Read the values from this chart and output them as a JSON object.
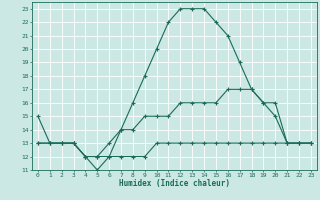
{
  "xlabel": "Humidex (Indice chaleur)",
  "bg_color": "#cce8e4",
  "line_color": "#1a6b5a",
  "grid_color": "#ffffff",
  "xlim": [
    -0.5,
    23.5
  ],
  "ylim": [
    11,
    23.5
  ],
  "yticks": [
    11,
    12,
    13,
    14,
    15,
    16,
    17,
    18,
    19,
    20,
    21,
    22,
    23
  ],
  "xticks": [
    0,
    1,
    2,
    3,
    4,
    5,
    6,
    7,
    8,
    9,
    10,
    11,
    12,
    13,
    14,
    15,
    16,
    17,
    18,
    19,
    20,
    21,
    22,
    23
  ],
  "line1_x": [
    0,
    1,
    2,
    3,
    4,
    5,
    6,
    7,
    8,
    9,
    10,
    11,
    12,
    13,
    14,
    15,
    16,
    17,
    18,
    19,
    20,
    21,
    22,
    23
  ],
  "line1_y": [
    15,
    13,
    13,
    13,
    12,
    11,
    12,
    14,
    16,
    18,
    20,
    22,
    23,
    23,
    23,
    22,
    21,
    19,
    17,
    16,
    15,
    13,
    13,
    13
  ],
  "line2_x": [
    0,
    1,
    2,
    3,
    4,
    5,
    6,
    7,
    8,
    9,
    10,
    11,
    12,
    13,
    14,
    15,
    16,
    17,
    18,
    19,
    20,
    21,
    22,
    23
  ],
  "line2_y": [
    13,
    13,
    13,
    13,
    12,
    12,
    13,
    14,
    14,
    15,
    15,
    15,
    16,
    16,
    16,
    16,
    17,
    17,
    17,
    16,
    16,
    13,
    13,
    13
  ],
  "line3_x": [
    0,
    1,
    2,
    3,
    4,
    5,
    6,
    7,
    8,
    9,
    10,
    11,
    12,
    13,
    14,
    15,
    16,
    17,
    18,
    19,
    20,
    21,
    22,
    23
  ],
  "line3_y": [
    13,
    13,
    13,
    13,
    12,
    12,
    12,
    12,
    12,
    12,
    13,
    13,
    13,
    13,
    13,
    13,
    13,
    13,
    13,
    13,
    13,
    13,
    13,
    13
  ],
  "xlabel_fontsize": 5.5,
  "xlabel_fontweight": "bold",
  "tick_fontsize": 4.5,
  "linewidth": 0.8,
  "markersize": 3,
  "markeredgewidth": 0.8
}
